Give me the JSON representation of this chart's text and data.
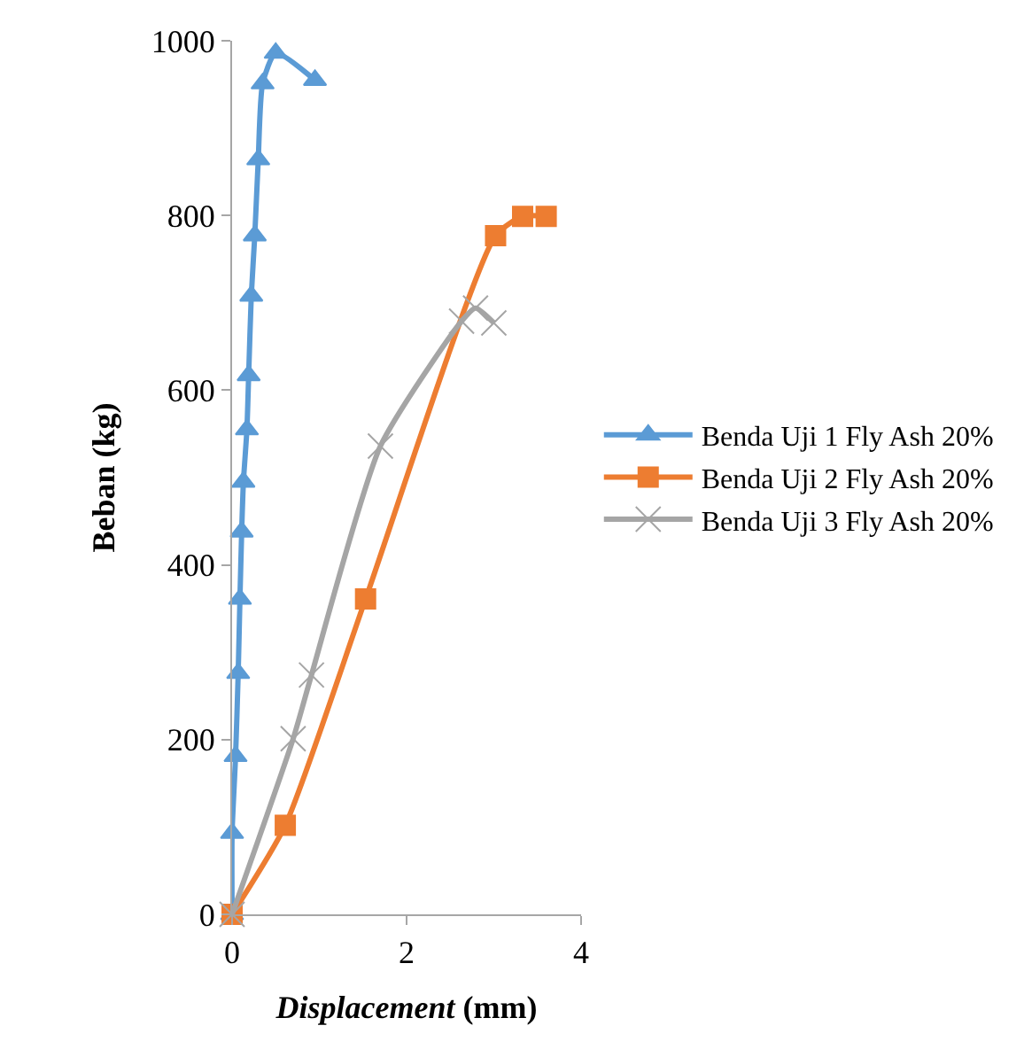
{
  "chart_data": {
    "type": "line",
    "xlabel": "Displacement (mm)",
    "ylabel": "Beban (kg)",
    "xlim": [
      0,
      4
    ],
    "xticks": [
      0,
      2,
      4
    ],
    "ylim": [
      0,
      1000
    ],
    "yticks": [
      0,
      200,
      400,
      600,
      800,
      1000
    ],
    "legend": "right",
    "line_style": "solid",
    "series": [
      {
        "name": "Benda Uji 1 Fly Ash 20%",
        "color": "#5b9bd5",
        "marker": "triangle",
        "x": [
          0,
          0,
          0.04,
          0.07,
          0.09,
          0.11,
          0.13,
          0.17,
          0.19,
          0.22,
          0.26,
          0.3,
          0.35,
          0.5,
          0.95
        ],
        "values": [
          0,
          93,
          181,
          276,
          361,
          438,
          495,
          555,
          617,
          708,
          777,
          864,
          951,
          986,
          955
        ]
      },
      {
        "name": "Benda Uji 2 Fly Ash 20%",
        "color": "#ed7d31",
        "marker": "square",
        "x": [
          0,
          0.61,
          1.53,
          3.02,
          3.33,
          3.6
        ],
        "values": [
          0,
          102,
          361,
          777,
          799,
          799
        ]
      },
      {
        "name": "Benda Uji 3 Fly Ash 20%",
        "color": "#a5a5a5",
        "marker": "cross",
        "x": [
          0,
          0.7,
          0.91,
          1.7,
          2.63,
          2.79,
          3.0
        ],
        "values": [
          0,
          201,
          274,
          536,
          679,
          694,
          677
        ]
      }
    ]
  }
}
